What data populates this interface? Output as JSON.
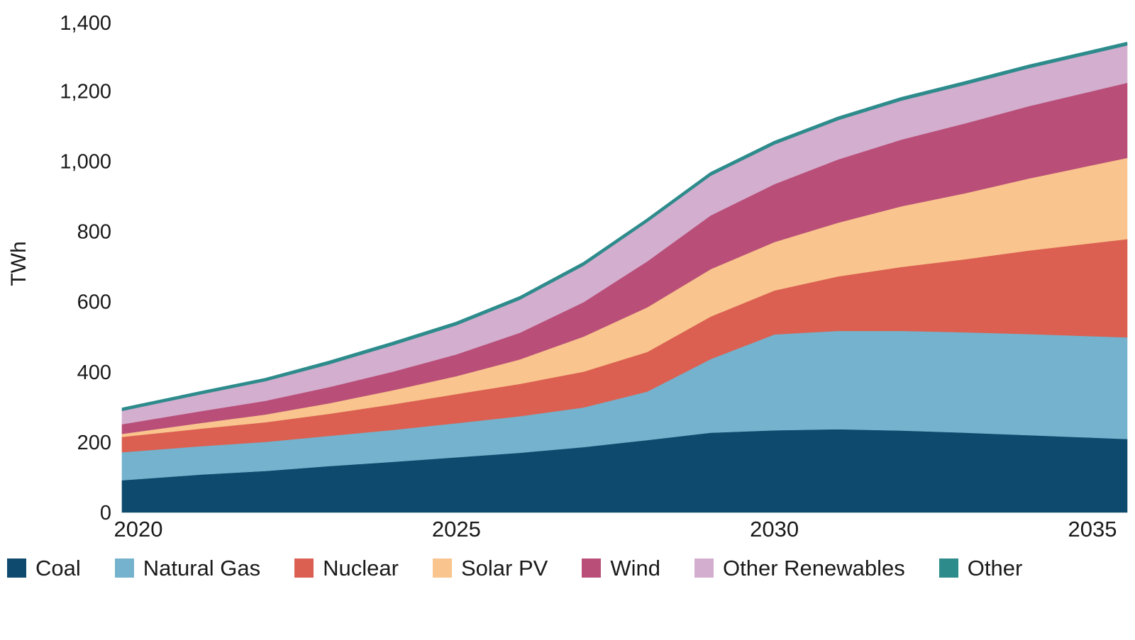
{
  "chart_data": {
    "type": "area",
    "stacked": true,
    "title": "",
    "xlabel": "",
    "ylabel": "TWh",
    "unit": "TWh",
    "grid": false,
    "legend_position": "bottom",
    "ylim": [
      0,
      1400
    ],
    "x": [
      2020,
      2021,
      2022,
      2023,
      2024,
      2025,
      2026,
      2027,
      2028,
      2029,
      2030,
      2031,
      2032,
      2033,
      2034,
      2035
    ],
    "x_ticks": [
      2020,
      2025,
      2030,
      2035
    ],
    "x_tick_labels": [
      "2020",
      "2025",
      "2030",
      "2035"
    ],
    "y_ticks": [
      0,
      200,
      400,
      600,
      800,
      1000,
      1200,
      1400
    ],
    "y_tick_labels": [
      "0",
      "200",
      "400",
      "600",
      "800",
      "1,000",
      "1,200",
      "1,400"
    ],
    "series": [
      {
        "name": "Coal",
        "color": "#0E4A6D",
        "values": [
          95,
          108,
          118,
          132,
          144,
          157,
          170,
          186,
          206,
          227,
          234,
          237,
          233,
          227,
          220,
          213
        ]
      },
      {
        "name": "Natural Gas",
        "color": "#74B2CD",
        "values": [
          80,
          81,
          83,
          86,
          91,
          97,
          104,
          113,
          138,
          210,
          273,
          280,
          284,
          286,
          288,
          289
        ]
      },
      {
        "name": "Nuclear",
        "color": "#DB6051",
        "values": [
          45,
          50,
          56,
          63,
          73,
          83,
          92,
          102,
          113,
          121,
          125,
          155,
          182,
          208,
          238,
          265
        ]
      },
      {
        "name": "Solar PV",
        "color": "#F9C48D",
        "values": [
          10,
          16,
          22,
          30,
          40,
          51,
          70,
          100,
          127,
          135,
          138,
          153,
          173,
          188,
          205,
          222
        ]
      },
      {
        "name": "Wind",
        "color": "#B94F79",
        "values": [
          29,
          34,
          39,
          46,
          53,
          62,
          76,
          98,
          131,
          153,
          165,
          180,
          190,
          199,
          206,
          211
        ]
      },
      {
        "name": "Other Renewables",
        "color": "#D3AECE",
        "values": [
          40,
          48,
          56,
          65,
          75,
          83,
          94,
          104,
          112,
          113,
          113,
          112,
          111,
          110,
          108,
          107
        ]
      },
      {
        "name": "Other",
        "color": "#2E8B8C",
        "values": [
          6,
          6,
          6,
          7,
          7,
          7,
          7,
          7,
          7,
          7,
          7,
          7,
          7,
          7,
          7,
          7
        ]
      }
    ],
    "totals_by_year": [
      305,
      343,
      380,
      429,
      483,
      540,
      613,
      710,
      834,
      966,
      1055,
      1124,
      1180,
      1225,
      1272,
      1314
    ]
  }
}
